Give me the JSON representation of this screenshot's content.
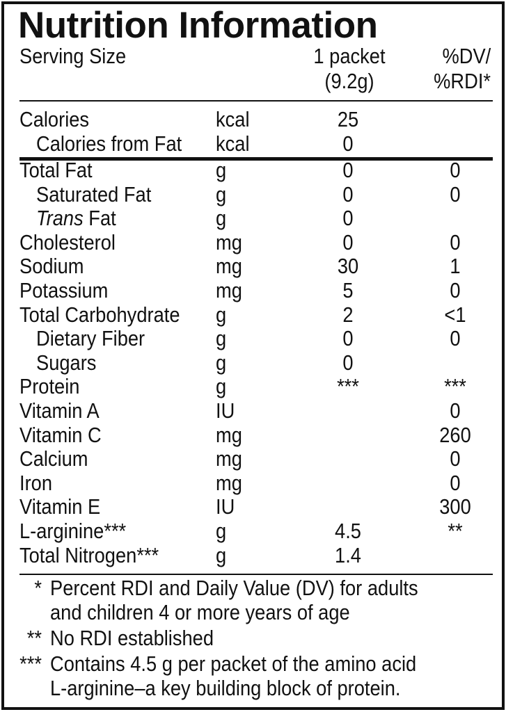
{
  "title": "Nutrition Information",
  "header": {
    "serving_size_label": "Serving Size",
    "amount_line1": "1 packet",
    "amount_line2": "(9.2g)",
    "dv_line1": "%DV/",
    "dv_line2": "%RDI*"
  },
  "calorie_rows": [
    {
      "label": "Calories",
      "unit": "kcal",
      "amount": "25",
      "dv": "",
      "indent": false
    },
    {
      "label": "Calories from Fat",
      "unit": "kcal",
      "amount": "0",
      "dv": "",
      "indent": true
    }
  ],
  "nutrient_rows": [
    {
      "label": "Total Fat",
      "unit": "g",
      "amount": "0",
      "dv": "0",
      "indent": false
    },
    {
      "label": "Saturated Fat",
      "unit": "g",
      "amount": "0",
      "dv": "0",
      "indent": true
    },
    {
      "label_italic": "Trans",
      "label": " Fat",
      "unit": "g",
      "amount": "0",
      "dv": "",
      "indent": true
    },
    {
      "label": "Cholesterol",
      "unit": "mg",
      "amount": "0",
      "dv": "0",
      "indent": false
    },
    {
      "label": "Sodium",
      "unit": "mg",
      "amount": "30",
      "dv": "1",
      "indent": false
    },
    {
      "label": "Potassium",
      "unit": "mg",
      "amount": "5",
      "dv": "0",
      "indent": false
    },
    {
      "label": "Total Carbohydrate",
      "unit": "g",
      "amount": "2",
      "dv": "<1",
      "indent": false
    },
    {
      "label": "Dietary Fiber",
      "unit": "g",
      "amount": "0",
      "dv": "0",
      "indent": true
    },
    {
      "label": "Sugars",
      "unit": "g",
      "amount": "0",
      "dv": "",
      "indent": true
    },
    {
      "label": "Protein",
      "unit": "g",
      "amount": "***",
      "dv": "***",
      "indent": false
    },
    {
      "label": "Vitamin A",
      "unit": "IU",
      "amount": "",
      "dv": "0",
      "indent": false
    },
    {
      "label": "Vitamin C",
      "unit": "mg",
      "amount": "",
      "dv": "260",
      "indent": false
    },
    {
      "label": "Calcium",
      "unit": "mg",
      "amount": "",
      "dv": "0",
      "indent": false
    },
    {
      "label": "Iron",
      "unit": "mg",
      "amount": "",
      "dv": "0",
      "indent": false
    },
    {
      "label": "Vitamin E",
      "unit": "IU",
      "amount": "",
      "dv": "300",
      "indent": false
    },
    {
      "label": "L-arginine***",
      "unit": "g",
      "amount": "4.5",
      "dv": "**",
      "indent": false
    },
    {
      "label": "Total Nitrogen***",
      "unit": "g",
      "amount": "1.4",
      "dv": "",
      "indent": false
    }
  ],
  "footnotes": [
    {
      "mark": "*",
      "lines": [
        "Percent RDI and Daily Value (DV) for adults",
        "and children 4 or more years of age"
      ]
    },
    {
      "mark": "**",
      "lines": [
        "No RDI established"
      ]
    },
    {
      "mark": "***",
      "lines": [
        "Contains 4.5 g per packet of the amino acid",
        "L-arginine–a key building block of protein."
      ]
    }
  ]
}
